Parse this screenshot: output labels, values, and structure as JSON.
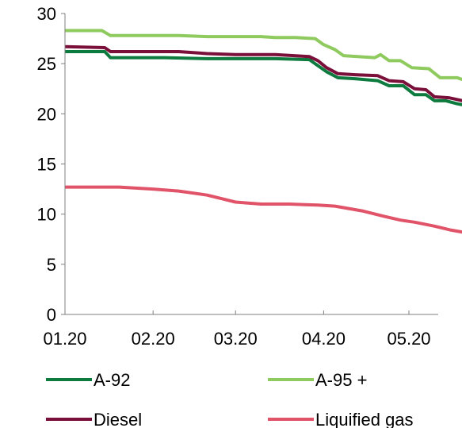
{
  "chart_data": {
    "type": "line",
    "title": "",
    "xlabel": "",
    "ylabel": "",
    "ylim": [
      0,
      30
    ],
    "yticks": [
      0,
      5,
      10,
      15,
      20,
      25,
      30
    ],
    "xlim": [
      "2020-01-01",
      "2020-05-20"
    ],
    "xticks": [
      {
        "date": "2020-01-01",
        "label": "01.20"
      },
      {
        "date": "2020-02-01",
        "label": "02.20"
      },
      {
        "date": "2020-03-01",
        "label": "03.20"
      },
      {
        "date": "2020-04-01",
        "label": "04.20"
      },
      {
        "date": "2020-05-01",
        "label": "05.20"
      }
    ],
    "grid": false,
    "legend": "bottom",
    "series": [
      {
        "name": "A-92",
        "color": "#0d7a3e",
        "points": [
          [
            "2020-01-01",
            26.2
          ],
          [
            "2020-01-15",
            26.2
          ],
          [
            "2020-01-17",
            25.6
          ],
          [
            "2020-02-05",
            25.6
          ],
          [
            "2020-02-20",
            25.5
          ],
          [
            "2020-03-15",
            25.5
          ],
          [
            "2020-03-27",
            25.4
          ],
          [
            "2020-03-30",
            24.8
          ],
          [
            "2020-04-02",
            24.2
          ],
          [
            "2020-04-06",
            23.6
          ],
          [
            "2020-04-12",
            23.5
          ],
          [
            "2020-04-20",
            23.3
          ],
          [
            "2020-04-24",
            22.8
          ],
          [
            "2020-04-29",
            22.8
          ],
          [
            "2020-05-03",
            21.9
          ],
          [
            "2020-05-07",
            21.9
          ],
          [
            "2020-05-10",
            21.3
          ],
          [
            "2020-05-14",
            21.3
          ],
          [
            "2020-05-18",
            21.0
          ],
          [
            "2020-05-20",
            20.9
          ]
        ]
      },
      {
        "name": "A-95 +",
        "color": "#8fca5e",
        "points": [
          [
            "2020-01-01",
            28.3
          ],
          [
            "2020-01-14",
            28.3
          ],
          [
            "2020-01-17",
            27.8
          ],
          [
            "2020-02-10",
            27.8
          ],
          [
            "2020-02-20",
            27.7
          ],
          [
            "2020-03-10",
            27.7
          ],
          [
            "2020-03-15",
            27.6
          ],
          [
            "2020-03-22",
            27.6
          ],
          [
            "2020-03-29",
            27.5
          ],
          [
            "2020-04-01",
            26.9
          ],
          [
            "2020-04-05",
            26.4
          ],
          [
            "2020-04-08",
            25.8
          ],
          [
            "2020-04-19",
            25.6
          ],
          [
            "2020-04-21",
            25.9
          ],
          [
            "2020-04-24",
            25.3
          ],
          [
            "2020-04-28",
            25.3
          ],
          [
            "2020-05-02",
            24.6
          ],
          [
            "2020-05-08",
            24.5
          ],
          [
            "2020-05-12",
            23.6
          ],
          [
            "2020-05-18",
            23.6
          ],
          [
            "2020-05-20",
            23.4
          ]
        ]
      },
      {
        "name": "Diesel",
        "color": "#7a0f3a",
        "points": [
          [
            "2020-01-01",
            26.7
          ],
          [
            "2020-01-15",
            26.6
          ],
          [
            "2020-01-17",
            26.2
          ],
          [
            "2020-02-10",
            26.2
          ],
          [
            "2020-02-20",
            26.0
          ],
          [
            "2020-03-01",
            25.9
          ],
          [
            "2020-03-15",
            25.9
          ],
          [
            "2020-03-27",
            25.7
          ],
          [
            "2020-03-30",
            25.3
          ],
          [
            "2020-04-02",
            24.6
          ],
          [
            "2020-04-06",
            24.0
          ],
          [
            "2020-04-12",
            23.9
          ],
          [
            "2020-04-20",
            23.8
          ],
          [
            "2020-04-24",
            23.3
          ],
          [
            "2020-04-29",
            23.2
          ],
          [
            "2020-05-03",
            22.5
          ],
          [
            "2020-05-07",
            22.4
          ],
          [
            "2020-05-10",
            21.7
          ],
          [
            "2020-05-15",
            21.6
          ],
          [
            "2020-05-20",
            21.3
          ]
        ]
      },
      {
        "name": "Liquified gas",
        "color": "#e05368",
        "points": [
          [
            "2020-01-01",
            12.7
          ],
          [
            "2020-01-20",
            12.7
          ],
          [
            "2020-02-01",
            12.5
          ],
          [
            "2020-02-10",
            12.3
          ],
          [
            "2020-02-20",
            11.9
          ],
          [
            "2020-03-01",
            11.2
          ],
          [
            "2020-03-10",
            11.0
          ],
          [
            "2020-03-20",
            11.0
          ],
          [
            "2020-03-30",
            10.9
          ],
          [
            "2020-04-05",
            10.8
          ],
          [
            "2020-04-15",
            10.3
          ],
          [
            "2020-04-22",
            9.8
          ],
          [
            "2020-04-28",
            9.4
          ],
          [
            "2020-05-03",
            9.2
          ],
          [
            "2020-05-10",
            8.8
          ],
          [
            "2020-05-16",
            8.4
          ],
          [
            "2020-05-20",
            8.2
          ]
        ]
      }
    ]
  }
}
